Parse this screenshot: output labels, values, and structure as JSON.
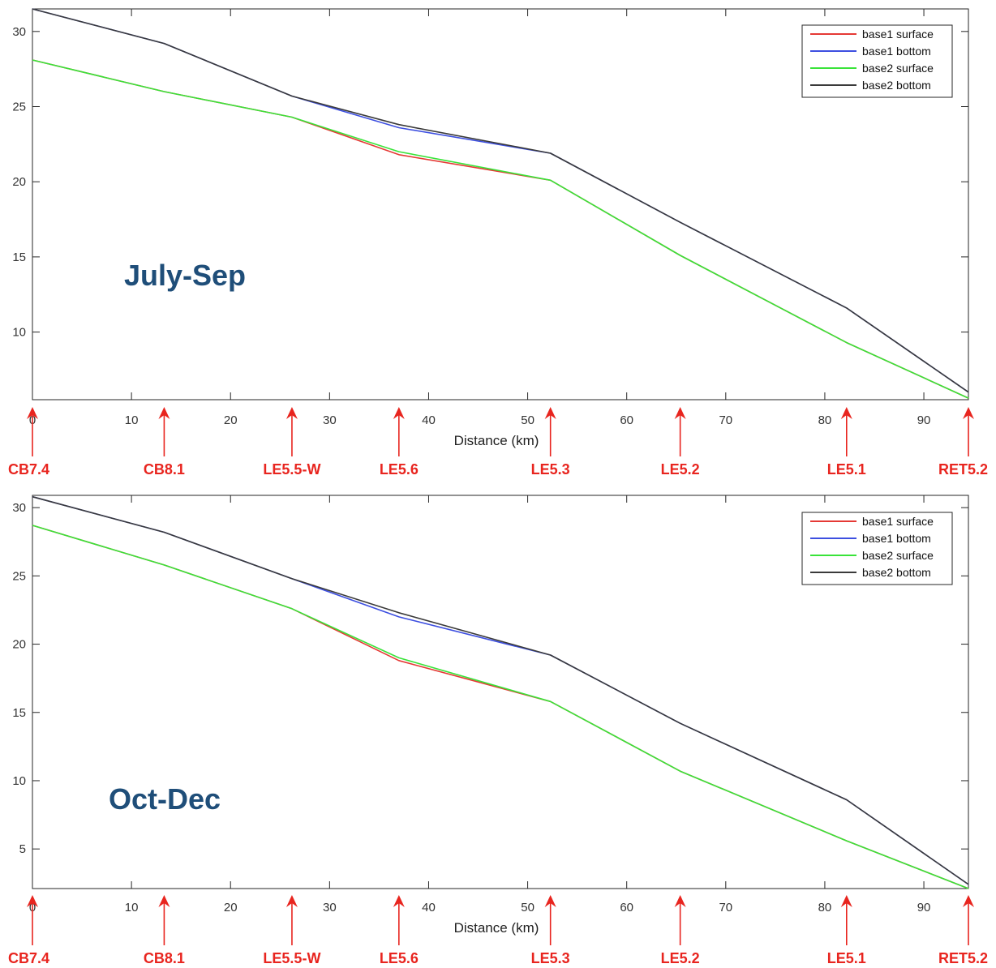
{
  "chart_data": [
    {
      "type": "line",
      "title": "",
      "annotation": "July-Sep",
      "xlabel": "Distance (km)",
      "ylabel": "",
      "xlim": [
        0,
        94.5
      ],
      "ylim": [
        5.5,
        31.5
      ],
      "xticks": [
        0,
        10,
        20,
        30,
        40,
        50,
        60,
        70,
        80,
        90
      ],
      "xtick_labels": [
        "0",
        "10",
        "20",
        "30",
        "40",
        "50",
        "60",
        "70",
        "80",
        "90"
      ],
      "yticks": [
        10,
        15,
        20,
        25,
        30
      ],
      "grid": false,
      "legend": "top-right",
      "stations": [
        {
          "name": "CB7.4",
          "x": 0
        },
        {
          "name": "CB8.1",
          "x": 13.3
        },
        {
          "name": "LE5.5-W",
          "x": 26.2
        },
        {
          "name": "LE5.6",
          "x": 37
        },
        {
          "name": "LE5.3",
          "x": 52.3
        },
        {
          "name": "LE5.2",
          "x": 65.4
        },
        {
          "name": "LE5.1",
          "x": 82.2
        },
        {
          "name": "RET5.2",
          "x": 94.5
        }
      ],
      "series": [
        {
          "name": "base1 surface",
          "color": "#e53935",
          "x": [
            0,
            13.3,
            26.2,
            37,
            52.3,
            65.4,
            82.2,
            94.5
          ],
          "values": [
            28.1,
            26.0,
            24.3,
            21.8,
            20.1,
            15.1,
            9.3,
            5.6
          ]
        },
        {
          "name": "base1 bottom",
          "color": "#3d4fe0",
          "x": [
            0,
            13.3,
            26.2,
            37,
            52.3,
            65.4,
            82.2,
            94.5
          ],
          "values": [
            31.5,
            29.2,
            25.7,
            23.6,
            21.9,
            17.3,
            11.6,
            6.0
          ]
        },
        {
          "name": "base2 surface",
          "color": "#39e339",
          "x": [
            0,
            13.3,
            26.2,
            37,
            52.3,
            65.4,
            82.2,
            94.5
          ],
          "values": [
            28.1,
            26.0,
            24.3,
            22.0,
            20.1,
            15.1,
            9.3,
            5.6
          ]
        },
        {
          "name": "base2 bottom",
          "color": "#3a3a3a",
          "x": [
            0,
            13.3,
            26.2,
            37,
            52.3,
            65.4,
            82.2,
            94.5
          ],
          "values": [
            31.5,
            29.2,
            25.7,
            23.8,
            21.9,
            17.3,
            11.6,
            6.0
          ]
        }
      ]
    },
    {
      "type": "line",
      "title": "",
      "annotation": "Oct-Dec",
      "xlabel": "Distance (km)",
      "ylabel": "",
      "xlim": [
        0,
        94.5
      ],
      "ylim": [
        2.1,
        30.9
      ],
      "xticks": [
        0,
        10,
        20,
        30,
        40,
        50,
        60,
        70,
        80,
        90
      ],
      "xtick_labels": [
        "0",
        "10",
        "20",
        "30",
        "40",
        "50",
        "60",
        "70",
        "80",
        "90"
      ],
      "yticks": [
        5,
        10,
        15,
        20,
        25,
        30
      ],
      "grid": false,
      "legend": "top-right",
      "stations": [
        {
          "name": "CB7.4",
          "x": 0
        },
        {
          "name": "CB8.1",
          "x": 13.3
        },
        {
          "name": "LE5.5-W",
          "x": 26.2
        },
        {
          "name": "LE5.6",
          "x": 37
        },
        {
          "name": "LE5.3",
          "x": 52.3
        },
        {
          "name": "LE5.2",
          "x": 65.4
        },
        {
          "name": "LE5.1",
          "x": 82.2
        },
        {
          "name": "RET5.2",
          "x": 94.5
        }
      ],
      "series": [
        {
          "name": "base1 surface",
          "color": "#e53935",
          "x": [
            0,
            13.3,
            26.2,
            37,
            52.3,
            65.4,
            82.2,
            94.5
          ],
          "values": [
            28.7,
            25.8,
            22.6,
            18.8,
            15.8,
            10.7,
            5.6,
            2.1
          ]
        },
        {
          "name": "base1 bottom",
          "color": "#3d4fe0",
          "x": [
            0,
            13.3,
            26.2,
            37,
            52.3,
            65.4,
            82.2,
            94.5
          ],
          "values": [
            30.8,
            28.2,
            24.8,
            22.0,
            19.2,
            14.2,
            8.6,
            2.4
          ]
        },
        {
          "name": "base2 surface",
          "color": "#39e339",
          "x": [
            0,
            13.3,
            26.2,
            37,
            52.3,
            65.4,
            82.2,
            94.5
          ],
          "values": [
            28.7,
            25.8,
            22.6,
            19.0,
            15.8,
            10.7,
            5.6,
            2.1
          ]
        },
        {
          "name": "base2 bottom",
          "color": "#3a3a3a",
          "x": [
            0,
            13.3,
            26.2,
            37,
            52.3,
            65.4,
            82.2,
            94.5
          ],
          "values": [
            30.8,
            28.2,
            24.8,
            22.3,
            19.2,
            14.2,
            8.6,
            2.4
          ]
        }
      ]
    }
  ]
}
